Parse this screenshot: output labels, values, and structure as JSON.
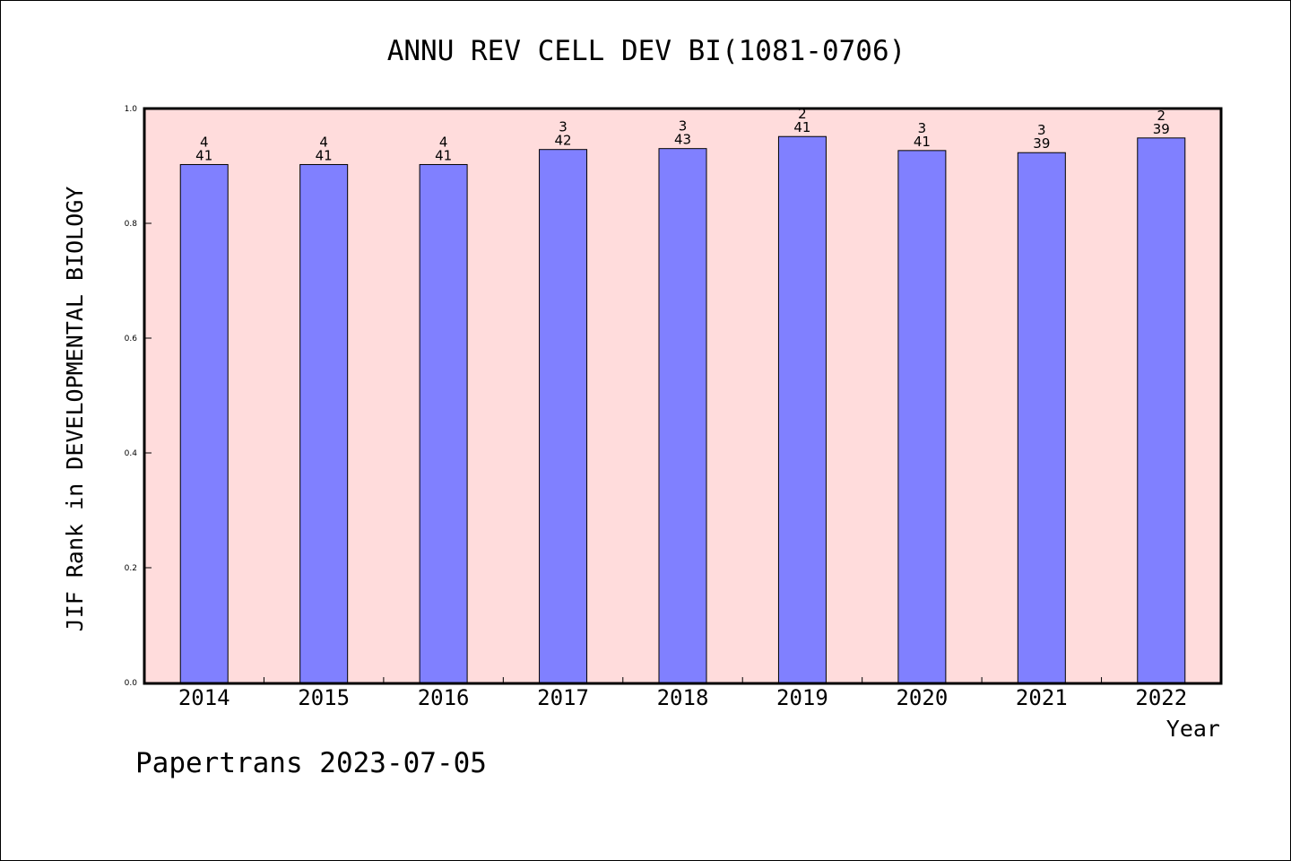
{
  "chart_data": {
    "type": "bar",
    "title": "ANNU REV CELL DEV BI(1081-0706)",
    "xlabel": "Year",
    "ylabel": "JIF Rank in DEVELOPMENTAL BIOLOGY",
    "ylim": [
      0,
      1
    ],
    "yticks": [
      "0.0",
      "0.2",
      "0.4",
      "0.6",
      "0.8",
      "1.0"
    ],
    "categories": [
      "2014",
      "2015",
      "2016",
      "2017",
      "2018",
      "2019",
      "2020",
      "2021",
      "2022"
    ],
    "values": [
      0.9024,
      0.9024,
      0.9024,
      0.9286,
      0.9302,
      0.9512,
      0.9268,
      0.9231,
      0.9487
    ],
    "rank_labels": [
      "4",
      "4",
      "4",
      "3",
      "3",
      "2",
      "3",
      "3",
      "2"
    ],
    "total_labels": [
      "41",
      "41",
      "41",
      "42",
      "43",
      "41",
      "41",
      "39",
      "39"
    ],
    "grid": false,
    "colors": {
      "bar": "#8080ff",
      "plot_background": "#ffdcdc",
      "axis": "#000000"
    }
  },
  "footer": {
    "text": "Papertrans 2023-07-05"
  }
}
